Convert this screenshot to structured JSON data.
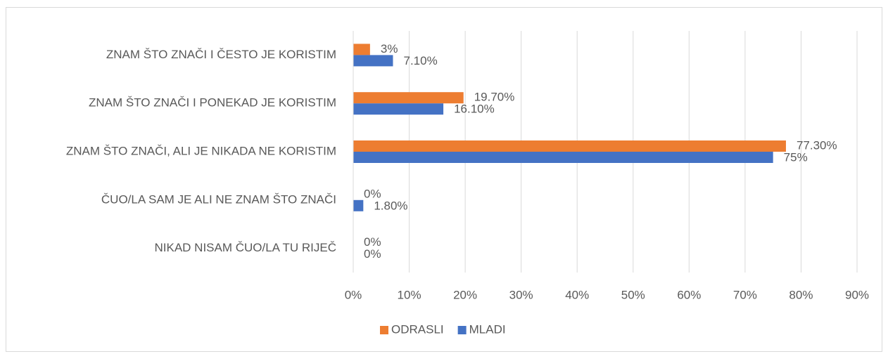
{
  "chart_data": {
    "type": "hbar",
    "categories": [
      "ZNAM ŠTO ZNAČI I ČESTO JE KORISTIM",
      "ZNAM ŠTO ZNAČI I PONEKAD JE KORISTIM",
      "ZNAM ŠTO ZNAČI, ALI JE NIKADA NE KORISTIM",
      "ČUO/LA SAM JE ALI NE ZNAM ŠTO ZNAČI",
      "NIKAD NISAM ČUO/LA TU RIJEČ"
    ],
    "series": [
      {
        "name": "ODRASLI",
        "color": "#ed7d31",
        "values": [
          3,
          19.7,
          77.3,
          0,
          0
        ],
        "value_labels": [
          "3%",
          "19.70%",
          "77.30%",
          "0%",
          "0%"
        ]
      },
      {
        "name": "MLADI",
        "color": "#4472c4",
        "values": [
          7.1,
          16.1,
          75,
          1.8,
          0
        ],
        "value_labels": [
          "7.10%",
          "16.10%",
          "75%",
          "1.80%",
          "0%"
        ]
      }
    ],
    "xlim": [
      0,
      90
    ],
    "xticks": [
      {
        "value": 0,
        "label": "0%"
      },
      {
        "value": 10,
        "label": "10%"
      },
      {
        "value": 20,
        "label": "20%"
      },
      {
        "value": 30,
        "label": "30%"
      },
      {
        "value": 40,
        "label": "40%"
      },
      {
        "value": 50,
        "label": "50%"
      },
      {
        "value": 60,
        "label": "60%"
      },
      {
        "value": 70,
        "label": "70%"
      },
      {
        "value": 80,
        "label": "80%"
      },
      {
        "value": 90,
        "label": "90%"
      }
    ],
    "grid": true,
    "legend": "bottom"
  }
}
